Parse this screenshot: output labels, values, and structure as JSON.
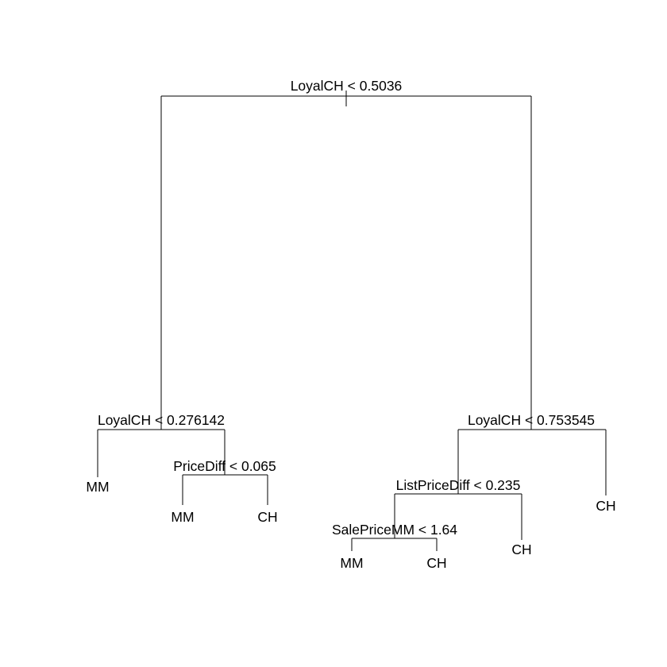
{
  "tree": {
    "splits": {
      "root": "LoyalCH < 0.5036",
      "left": "LoyalCH < 0.276142",
      "left_right": "PriceDiff < 0.065",
      "right": "LoyalCH < 0.753545",
      "right_left": "ListPriceDiff < 0.235",
      "right_left_left": "SalePriceMM < 1.64"
    },
    "leaves": {
      "left_left": "MM",
      "left_right_left": "MM",
      "left_right_right": "CH",
      "right_left_left_left": "MM",
      "right_left_left_right": "CH",
      "right_left_right": "CH",
      "right_right": "CH"
    }
  }
}
